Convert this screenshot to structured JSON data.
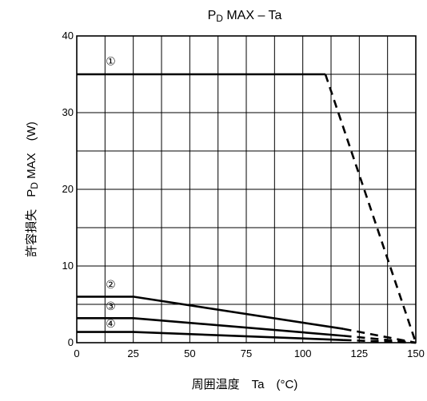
{
  "chart_data": {
    "type": "line",
    "title_main": "P",
    "title_sub": "D",
    "title_rest": " MAX – Ta",
    "xlabel": "周囲温度　Ta　(°C)",
    "ylabel_kanji": "許容損失",
    "ylabel_main": "P",
    "ylabel_sub": "D",
    "ylabel_rest": " MAX　(W)",
    "xlim": [
      0,
      150
    ],
    "ylim": [
      0,
      40
    ],
    "x_ticks": [
      0,
      25,
      50,
      75,
      100,
      125,
      150
    ],
    "y_ticks": [
      0,
      10,
      20,
      30,
      40
    ],
    "x_tick_labels": [
      "0",
      "25",
      "50",
      "75",
      "100",
      "125",
      "150"
    ],
    "y_tick_labels": [
      "0",
      "10",
      "20",
      "30",
      "40"
    ],
    "grid": true,
    "series": [
      {
        "name": "①",
        "label_at": [
          15,
          36.7
        ],
        "solid": [
          [
            0,
            35
          ],
          [
            110,
            35
          ]
        ],
        "dashed": [
          [
            110,
            35
          ],
          [
            150,
            0
          ]
        ]
      },
      {
        "name": "②",
        "label_at": [
          15,
          7.6
        ],
        "solid": [
          [
            0,
            6
          ],
          [
            25,
            6
          ],
          [
            118,
            1.8
          ]
        ],
        "dashed": [
          [
            118,
            1.8
          ],
          [
            150,
            0
          ]
        ]
      },
      {
        "name": "③",
        "label_at": [
          15,
          4.8
        ],
        "solid": [
          [
            0,
            3.2
          ],
          [
            25,
            3.2
          ],
          [
            118,
            0.9
          ]
        ],
        "dashed": [
          [
            118,
            0.9
          ],
          [
            150,
            0
          ]
        ]
      },
      {
        "name": "④",
        "label_at": [
          15,
          2.5
        ],
        "solid": [
          [
            0,
            1.4
          ],
          [
            25,
            1.4
          ],
          [
            118,
            0.35
          ]
        ],
        "dashed": [
          [
            118,
            0.35
          ],
          [
            150,
            0
          ]
        ]
      }
    ]
  }
}
